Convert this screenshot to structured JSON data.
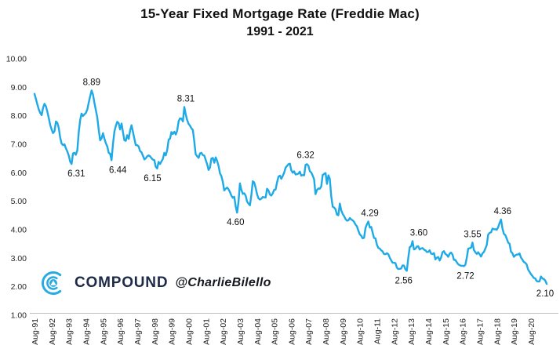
{
  "header": {
    "title": "15-Year Fixed Mortgage Rate (Freddie Mac)",
    "subtitle": "1991 - 2021"
  },
  "watermark": {
    "brand": "COMPOUND",
    "handle": "@CharlieBilello",
    "icon": "compound-arcs-icon"
  },
  "colors": {
    "line": "#1EAAE6",
    "axis_line": "#BFBFBF",
    "tick_text": "#262626",
    "brand_navy": "#1E2A47",
    "brand_cyan": "#29ABE2"
  },
  "chart_data": {
    "type": "line",
    "title": "15-Year Fixed Mortgage Rate (Freddie Mac) 1991 - 2021",
    "xlabel": "",
    "ylabel": "",
    "ylim": [
      1.0,
      10.0
    ],
    "grid": false,
    "legend": "none",
    "frequency": "monthly",
    "x_start": "Aug-1991",
    "x_end": "Jul-2021",
    "x_tick_labels": [
      "Aug-91",
      "Aug-92",
      "Aug-93",
      "Aug-94",
      "Aug-95",
      "Aug-96",
      "Aug-97",
      "Aug-98",
      "Aug-99",
      "Aug-00",
      "Aug-01",
      "Aug-02",
      "Aug-03",
      "Aug-04",
      "Aug-05",
      "Aug-06",
      "Aug-07",
      "Aug-08",
      "Aug-09",
      "Aug-10",
      "Aug-11",
      "Aug-12",
      "Aug-13",
      "Aug-14",
      "Aug-15",
      "Aug-16",
      "Aug-17",
      "Aug-18",
      "Aug-19",
      "Aug-20"
    ],
    "y_tick_labels": [
      "1.00",
      "2.00",
      "3.00",
      "4.00",
      "5.00",
      "6.00",
      "7.00",
      "8.00",
      "9.00",
      "10.00"
    ],
    "series": [
      {
        "name": "15-Year Fixed Mortgage Rate",
        "values": [
          8.77,
          8.59,
          8.4,
          8.22,
          8.1,
          8.02,
          8.28,
          8.42,
          8.33,
          8.14,
          7.92,
          7.68,
          7.52,
          7.39,
          7.46,
          7.8,
          7.75,
          7.58,
          7.24,
          7.02,
          6.97,
          7.0,
          6.86,
          6.75,
          6.6,
          6.39,
          6.31,
          6.68,
          6.7,
          6.63,
          6.79,
          7.42,
          7.85,
          8.08,
          7.99,
          8.05,
          8.1,
          8.22,
          8.46,
          8.68,
          8.89,
          8.74,
          8.45,
          8.2,
          7.95,
          7.5,
          7.14,
          7.21,
          7.39,
          7.2,
          7.04,
          6.92,
          6.7,
          6.67,
          6.44,
          7.0,
          7.45,
          7.65,
          7.79,
          7.74,
          7.52,
          7.73,
          7.42,
          7.14,
          7.12,
          7.32,
          7.19,
          7.48,
          7.67,
          7.44,
          7.2,
          6.97,
          6.97,
          6.92,
          6.76,
          6.72,
          6.6,
          6.47,
          6.51,
          6.58,
          6.61,
          6.58,
          6.51,
          6.46,
          6.44,
          6.21,
          6.15,
          6.38,
          6.31,
          6.4,
          6.49,
          6.7,
          6.61,
          6.8,
          7.16,
          7.2,
          7.43,
          7.36,
          7.44,
          7.34,
          7.48,
          7.8,
          7.91,
          7.9,
          7.8,
          8.31,
          8.05,
          7.85,
          7.72,
          7.65,
          7.56,
          7.5,
          7.1,
          6.65,
          6.58,
          6.52,
          6.68,
          6.7,
          6.62,
          6.6,
          6.45,
          6.3,
          6.1,
          6.18,
          6.5,
          6.52,
          6.35,
          6.54,
          6.42,
          6.25,
          5.98,
          5.88,
          5.68,
          5.38,
          5.44,
          5.48,
          5.42,
          5.32,
          5.2,
          5.12,
          5.16,
          4.82,
          4.6,
          4.98,
          5.63,
          5.4,
          5.26,
          5.28,
          5.2,
          4.99,
          4.92,
          4.86,
          5.22,
          5.7,
          5.66,
          5.48,
          5.24,
          5.1,
          5.06,
          5.09,
          5.15,
          5.14,
          5.13,
          5.44,
          5.38,
          5.24,
          5.2,
          5.28,
          5.4,
          5.41,
          5.66,
          5.86,
          5.9,
          5.79,
          5.89,
          6.0,
          6.18,
          6.24,
          6.3,
          6.32,
          6.09,
          6.0,
          6.05,
          5.94,
          5.95,
          5.97,
          6.04,
          5.9,
          5.92,
          5.91,
          6.28,
          6.3,
          6.25,
          6.05,
          6.01,
          5.9,
          5.77,
          5.25,
          5.4,
          5.45,
          5.44,
          5.52,
          5.92,
          5.96,
          5.99,
          5.61,
          5.91,
          5.79,
          5.18,
          4.81,
          4.78,
          4.72,
          4.53,
          4.51,
          4.92,
          4.68,
          4.56,
          4.48,
          4.38,
          4.32,
          4.33,
          4.41,
          4.36,
          4.33,
          4.28,
          4.18,
          4.12,
          3.97,
          3.84,
          3.79,
          3.7,
          3.72,
          4.06,
          4.19,
          4.29,
          4.08,
          4.1,
          3.9,
          3.71,
          3.7,
          3.48,
          3.36,
          3.34,
          3.28,
          3.24,
          3.15,
          3.14,
          3.18,
          3.14,
          3.02,
          2.93,
          2.84,
          2.84,
          2.83,
          2.67,
          2.62,
          2.63,
          2.64,
          2.75,
          2.74,
          2.61,
          2.56,
          3.02,
          3.39,
          3.42,
          3.6,
          3.31,
          3.33,
          3.41,
          3.42,
          3.31,
          3.34,
          3.36,
          3.3,
          3.28,
          3.22,
          3.22,
          3.28,
          3.16,
          3.15,
          3.18,
          2.96,
          3.02,
          3.04,
          2.92,
          3.03,
          3.21,
          3.25,
          3.15,
          3.12,
          3.05,
          3.16,
          3.2,
          3.13,
          2.94,
          2.94,
          2.86,
          2.79,
          2.76,
          2.73,
          2.74,
          2.72,
          2.77,
          3.01,
          3.34,
          3.35,
          3.37,
          3.55,
          3.29,
          3.21,
          3.15,
          3.21,
          3.14,
          3.06,
          3.17,
          3.22,
          3.34,
          3.46,
          3.83,
          3.89,
          3.91,
          4.04,
          4.02,
          4.02,
          4.0,
          4.09,
          4.24,
          4.36,
          4.05,
          3.86,
          3.81,
          3.69,
          3.55,
          3.51,
          3.23,
          3.18,
          3.05,
          3.1,
          3.13,
          3.13,
          3.17,
          3.02,
          2.95,
          2.87,
          2.84,
          2.78,
          2.6,
          2.52,
          2.44,
          2.38,
          2.31,
          2.29,
          2.2,
          2.18,
          2.19,
          2.36,
          2.29,
          2.27,
          2.22,
          2.1
        ]
      }
    ],
    "annotations": [
      {
        "label": "8.89",
        "index": 40,
        "position": "above",
        "dx": 0
      },
      {
        "label": "6.31",
        "index": 26,
        "position": "below",
        "dx": 6
      },
      {
        "label": "6.44",
        "index": 54,
        "position": "below",
        "dx": 8
      },
      {
        "label": "6.15",
        "index": 86,
        "position": "below",
        "dx": -6
      },
      {
        "label": "8.31",
        "index": 105,
        "position": "above",
        "dx": 2
      },
      {
        "label": "4.60",
        "index": 142,
        "position": "below",
        "dx": -2
      },
      {
        "label": "6.32",
        "index": 179,
        "position": "above",
        "dx": 20
      },
      {
        "label": "4.29",
        "index": 234,
        "position": "above",
        "dx": 2
      },
      {
        "label": "2.56",
        "index": 261,
        "position": "below",
        "dx": -4
      },
      {
        "label": "3.60",
        "index": 265,
        "position": "above",
        "dx": 8
      },
      {
        "label": "2.72",
        "index": 301,
        "position": "below",
        "dx": 2
      },
      {
        "label": "3.55",
        "index": 307,
        "position": "above",
        "dx": 0
      },
      {
        "label": "4.36",
        "index": 327,
        "position": "above",
        "dx": 2
      },
      {
        "label": "2.10",
        "index": 359,
        "position": "below",
        "dx": -2
      }
    ]
  }
}
